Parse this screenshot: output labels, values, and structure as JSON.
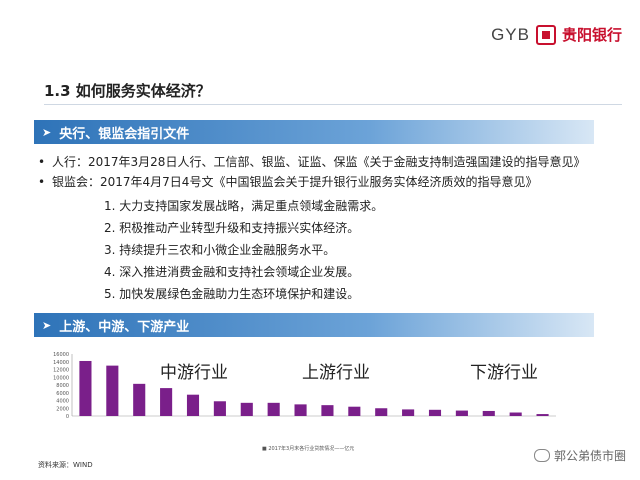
{
  "header": {
    "logo_text": "GYB",
    "bank_name": "贵阳银行",
    "brand_color": "#c8102e"
  },
  "title": "1.3  如何服务实体经济？",
  "section1": {
    "label": "央行、银监会指引文件",
    "bullets": [
      "人行：2017年3月28日人行、工信部、银监、证监、保监《关于金融支持制造强国建设的指导意见》",
      "银监会：2017年4月7日4号文《中国银监会关于提升银行业服务实体经济质效的指导意见》"
    ],
    "items": [
      "1. 大力支持国家发展战略，满足重点领域金融需求。",
      "2. 积极推动产业转型升级和支持振兴实体经济。",
      "3. 持续提升三农和小微企业金融服务水平。",
      "4. 深入推进消费金融和支持社会领域企业发展。",
      "5. 加快发展绿色金融助力生态环境保护和建设。"
    ]
  },
  "section2": {
    "label": "上游、中游、下游产业"
  },
  "chart_data": {
    "type": "bar",
    "ylim": [
      0,
      16000
    ],
    "yticks": [
      "0",
      "2000",
      "4000",
      "6000",
      "8000",
      "10000",
      "12000",
      "14000",
      "16000"
    ],
    "values": [
      14200,
      13000,
      8300,
      7200,
      5500,
      3800,
      3400,
      3400,
      3000,
      2800,
      2400,
      2000,
      1700,
      1600,
      1400,
      1300,
      900,
      500
    ],
    "group_labels": [
      "中游行业",
      "上游行业",
      "下游行业"
    ],
    "bar_color": "#7a1f8a",
    "legend": "■ 2017年3月末各行业贷款情况——亿元"
  },
  "source": "资料来源：WIND",
  "watermark": "郭公弟债市圈"
}
